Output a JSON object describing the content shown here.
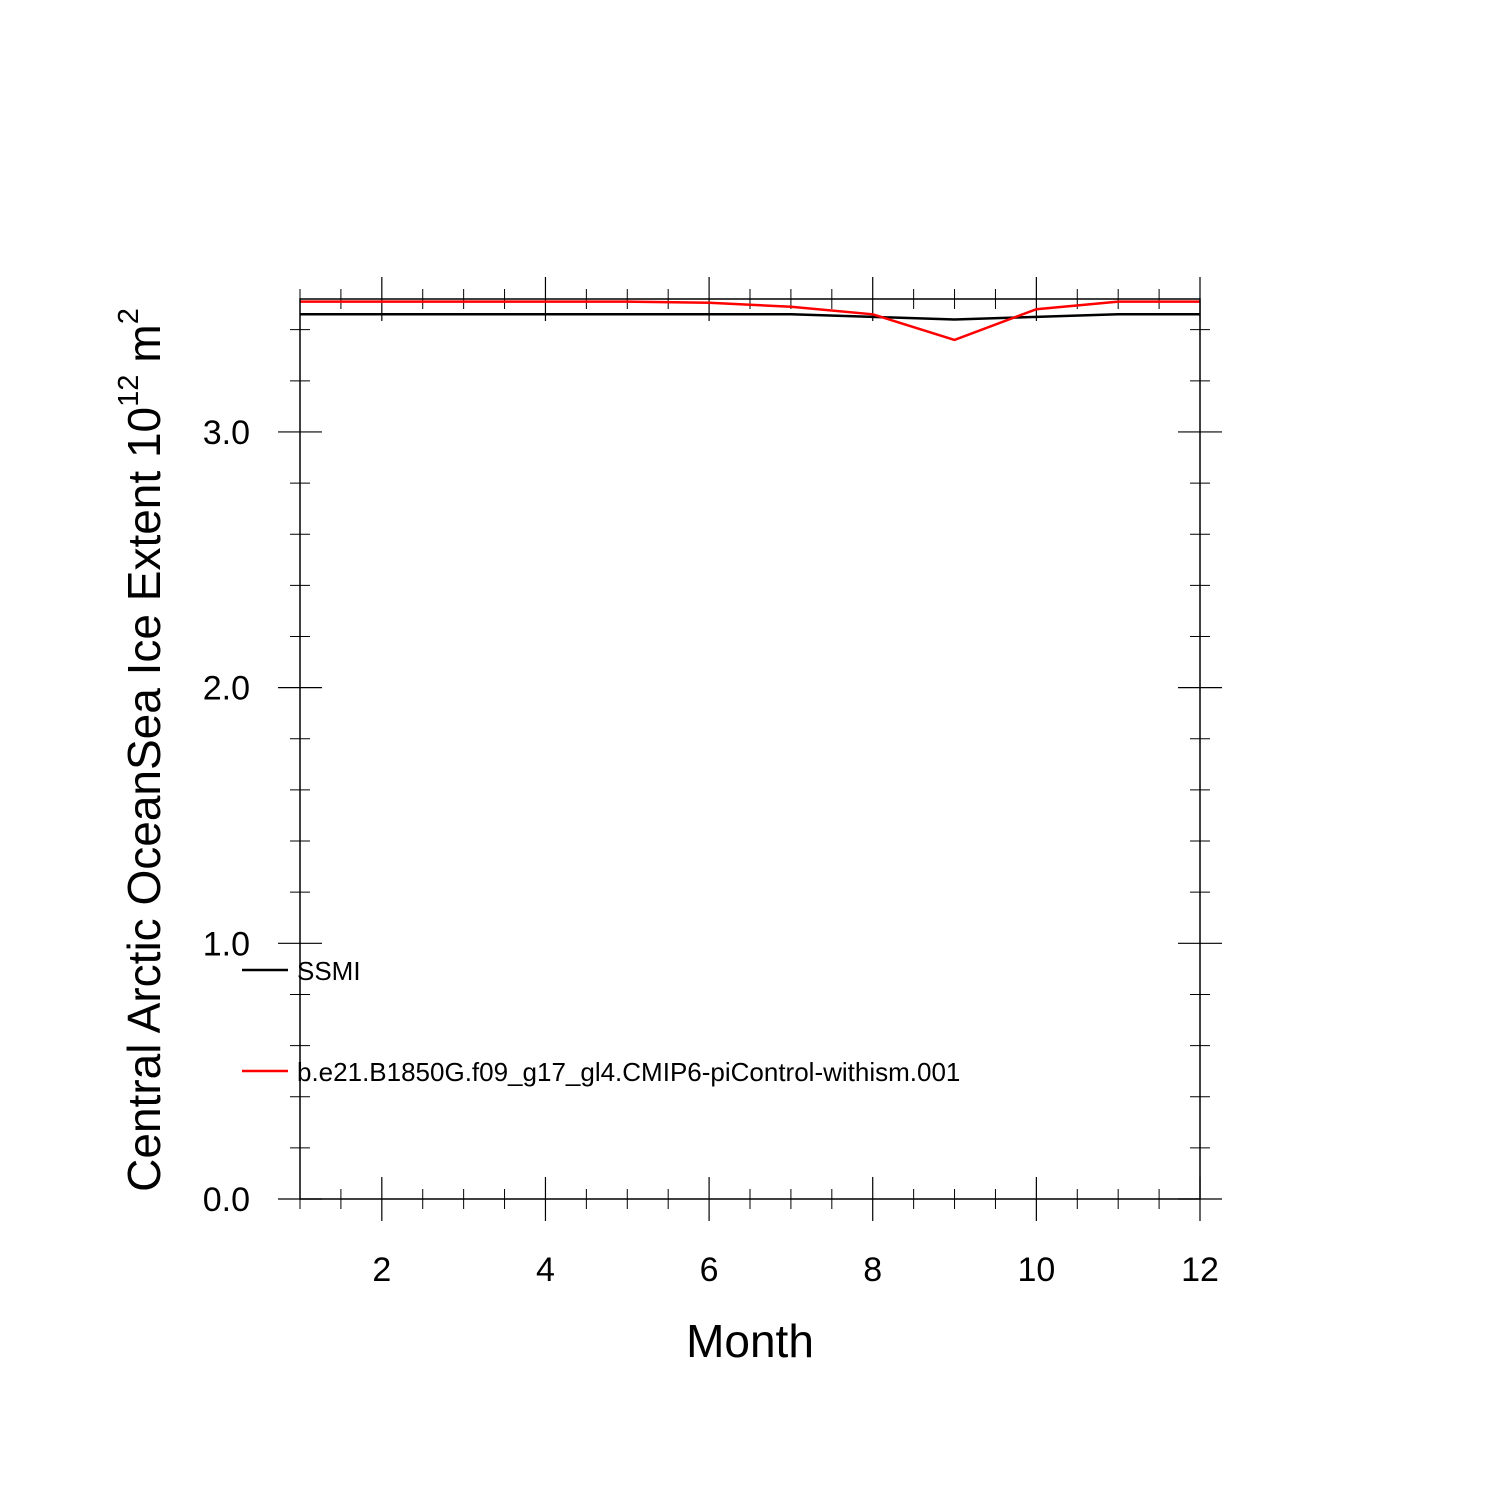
{
  "chart_data": {
    "type": "line",
    "title": "",
    "xlabel": "Month",
    "ylabel": {
      "text": "Central Arctic OceanSea Ice Extent 10",
      "superscript": "12",
      "unit": "m",
      "unit_superscript": "2"
    },
    "xlim": [
      1,
      12
    ],
    "ylim": [
      0,
      3.52
    ],
    "x_major_ticks": [
      2,
      4,
      6,
      8,
      10,
      12
    ],
    "x_tick_labels": [
      "2",
      "4",
      "6",
      "8",
      "10",
      "12"
    ],
    "y_major_ticks": [
      0,
      1,
      2,
      3
    ],
    "y_tick_labels": [
      "0.0",
      "1.0",
      "2.0",
      "3.0"
    ],
    "grid": false,
    "legend_placement": "lower-left",
    "x": [
      1,
      2,
      3,
      4,
      5,
      6,
      7,
      8,
      9,
      10,
      11,
      12
    ],
    "series": [
      {
        "name": "SSMI",
        "color": "#000000",
        "values": [
          3.46,
          3.46,
          3.46,
          3.46,
          3.46,
          3.46,
          3.46,
          3.45,
          3.44,
          3.45,
          3.46,
          3.46
        ]
      },
      {
        "name": "b.e21.B1850G.f09_g17_gl4.CMIP6-piControl-withism.001",
        "color": "#ff0000",
        "values": [
          3.51,
          3.51,
          3.51,
          3.51,
          3.51,
          3.505,
          3.49,
          3.46,
          3.36,
          3.48,
          3.51,
          3.51
        ]
      }
    ]
  }
}
